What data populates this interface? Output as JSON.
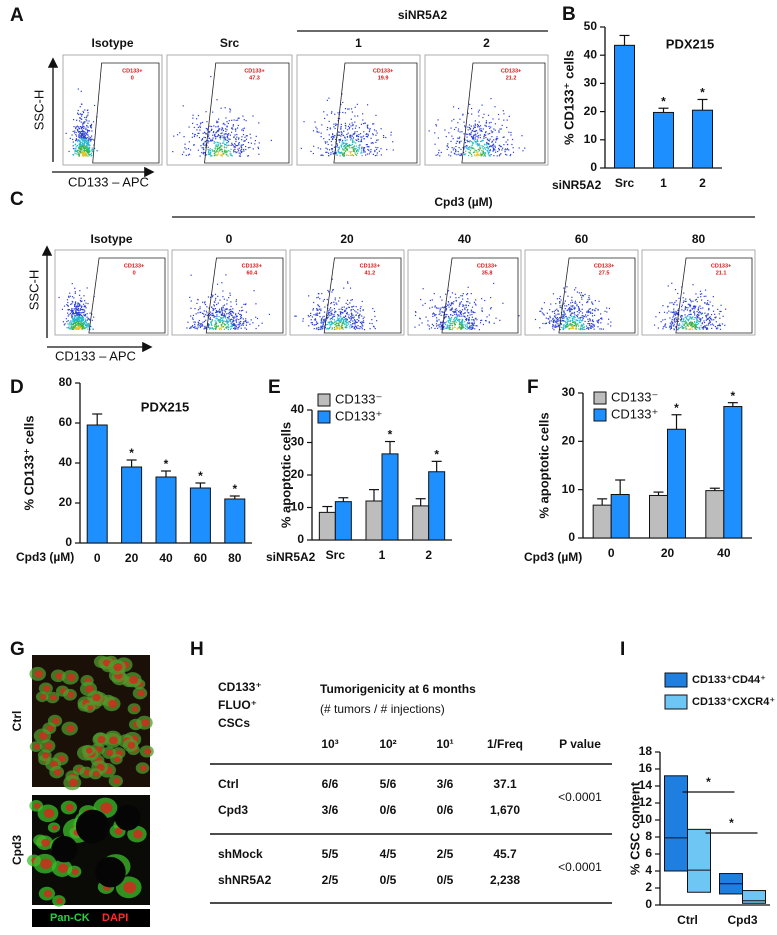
{
  "flow_panels": [
    {
      "panel": "A",
      "y_label": "SSC-H",
      "x_label": "CD133 – APC",
      "group_label": "siNR5A2",
      "plots": [
        {
          "title": "Isotype",
          "gate_label": "CD133+",
          "gate_value": 0
        },
        {
          "title": "Src",
          "gate_label": "CD133+",
          "gate_value": 47.3
        },
        {
          "title": "1",
          "gate_label": "CD133+",
          "gate_value": 19.9
        },
        {
          "title": "2",
          "gate_label": "CD133+",
          "gate_value": 21.2
        }
      ]
    },
    {
      "panel": "C",
      "y_label": "SSC-H",
      "x_label": "CD133 – APC",
      "group_label": "Cpd3 (µM)",
      "plots": [
        {
          "title": "Isotype",
          "gate_label": "CD133+",
          "gate_value": 0
        },
        {
          "title": "0",
          "gate_label": "CD133+",
          "gate_value": 60.4
        },
        {
          "title": "20",
          "gate_label": "CD133+",
          "gate_value": 41.2
        },
        {
          "title": "40",
          "gate_label": "CD133+",
          "gate_value": 35.8
        },
        {
          "title": "60",
          "gate_label": "CD133+",
          "gate_value": 27.5
        },
        {
          "title": "80",
          "gate_label": "CD133+",
          "gate_value": 21.1
        }
      ]
    }
  ],
  "chart_data": [
    {
      "type": "bar",
      "panel": "B",
      "title": "PDX215",
      "y_label": "% CD133⁺ cells",
      "x_label": "siNR5A2",
      "categories": [
        "Src",
        "1",
        "2"
      ],
      "series": [
        {
          "color": "#1e8fff",
          "values": [
            43.5,
            19.7,
            20.5
          ],
          "errors": [
            3.5,
            1.5,
            3.8
          ],
          "markers": [
            null,
            "*",
            "*"
          ]
        }
      ],
      "ylim": [
        0,
        50
      ],
      "yticks": [
        0,
        10,
        20,
        30,
        40,
        50
      ]
    },
    {
      "type": "bar",
      "panel": "D",
      "title": "PDX215",
      "y_label": "% CD133⁺ cells",
      "x_label": "Cpd3 (µM)",
      "categories": [
        "0",
        "20",
        "40",
        "60",
        "80"
      ],
      "series": [
        {
          "color": "#1e8fff",
          "values": [
            59,
            38,
            33,
            27.5,
            22
          ],
          "errors": [
            5.5,
            3.5,
            3,
            2.5,
            1.5
          ],
          "markers": [
            null,
            "*",
            "*",
            "*",
            "*"
          ]
        }
      ],
      "ylim": [
        0,
        80
      ],
      "yticks": [
        0,
        20,
        40,
        60,
        80
      ]
    },
    {
      "type": "bar",
      "panel": "E",
      "y_label": "% apoptotic cells",
      "x_label": "siNR5A2",
      "categories": [
        "Src",
        "1",
        "2"
      ],
      "series": [
        {
          "name": "CD133⁻",
          "color": "#bdbdbd",
          "values": [
            8.5,
            12,
            10.5
          ],
          "errors": [
            1.8,
            3.5,
            2.2
          ],
          "markers": [
            null,
            null,
            null
          ]
        },
        {
          "name": "CD133⁺",
          "color": "#1e8fff",
          "values": [
            11.8,
            26.5,
            21
          ],
          "errors": [
            1.2,
            3.8,
            3.2
          ],
          "markers": [
            null,
            "*",
            "*"
          ]
        }
      ],
      "ylim": [
        0,
        40
      ],
      "yticks": [
        0,
        10,
        20,
        30,
        40
      ],
      "legend": "top-left"
    },
    {
      "type": "bar",
      "panel": "F",
      "y_label": "% apoptotic cells",
      "x_label": "Cpd3 (µM)",
      "categories": [
        "0",
        "20",
        "40"
      ],
      "series": [
        {
          "name": "CD133⁻",
          "color": "#bdbdbd",
          "values": [
            6.8,
            8.8,
            9.8
          ],
          "errors": [
            1.3,
            0.7,
            0.5
          ],
          "markers": [
            null,
            null,
            null
          ]
        },
        {
          "name": "CD133⁺",
          "color": "#1e8fff",
          "values": [
            9,
            22.5,
            27.2
          ],
          "errors": [
            3,
            3,
            0.8
          ],
          "markers": [
            null,
            "*",
            "*"
          ]
        }
      ],
      "ylim": [
        0,
        30
      ],
      "yticks": [
        0,
        10,
        20,
        30
      ],
      "legend": "top-left"
    },
    {
      "type": "floating-bar",
      "panel": "I",
      "y_label": "% CSC content",
      "categories": [
        "Ctrl",
        "Cpd3"
      ],
      "series": [
        {
          "name": "CD133⁺CD44⁺",
          "color": "#1f7fe0",
          "low": [
            4,
            1.3
          ],
          "high": [
            15.2,
            3.7
          ],
          "mid": [
            7.9,
            2.5
          ]
        },
        {
          "name": "CD133⁺CXCR4⁺",
          "color": "#6ec6f5",
          "low": [
            1.5,
            0.2
          ],
          "high": [
            8.9,
            1.7
          ],
          "mid": [
            4.1,
            0.5
          ]
        }
      ],
      "annotations": [
        "*",
        "*"
      ],
      "ylim": [
        0,
        18
      ],
      "yticks": [
        0,
        2,
        4,
        6,
        8,
        10,
        12,
        14,
        16,
        18
      ],
      "legend": "top-left"
    }
  ],
  "image_panel": {
    "panel": "G",
    "rows": [
      "Ctrl",
      "Cpd3"
    ],
    "stain_labels": [
      "Pan-CK",
      "DAPI"
    ]
  },
  "table": {
    "panel": "H",
    "row_header": [
      "CD133⁺",
      "FLUO⁺",
      "CSCs"
    ],
    "title": "Tumorigenicity at 6 months",
    "subtitle": "(# tumors / # injections)",
    "columns": [
      "10³",
      "10²",
      "10¹",
      "1/Freq",
      "P value"
    ],
    "rows": [
      [
        "Ctrl",
        "6/6",
        "5/6",
        "3/6",
        "37.1"
      ],
      [
        "Cpd3",
        "3/6",
        "0/6",
        "0/6",
        "1,670"
      ],
      [
        "shMock",
        "5/5",
        "4/5",
        "2/5",
        "45.7"
      ],
      [
        "shNR5A2",
        "2/5",
        "0/5",
        "0/5",
        "2,238"
      ]
    ],
    "p_values": [
      "<0.0001",
      "<0.0001"
    ]
  }
}
